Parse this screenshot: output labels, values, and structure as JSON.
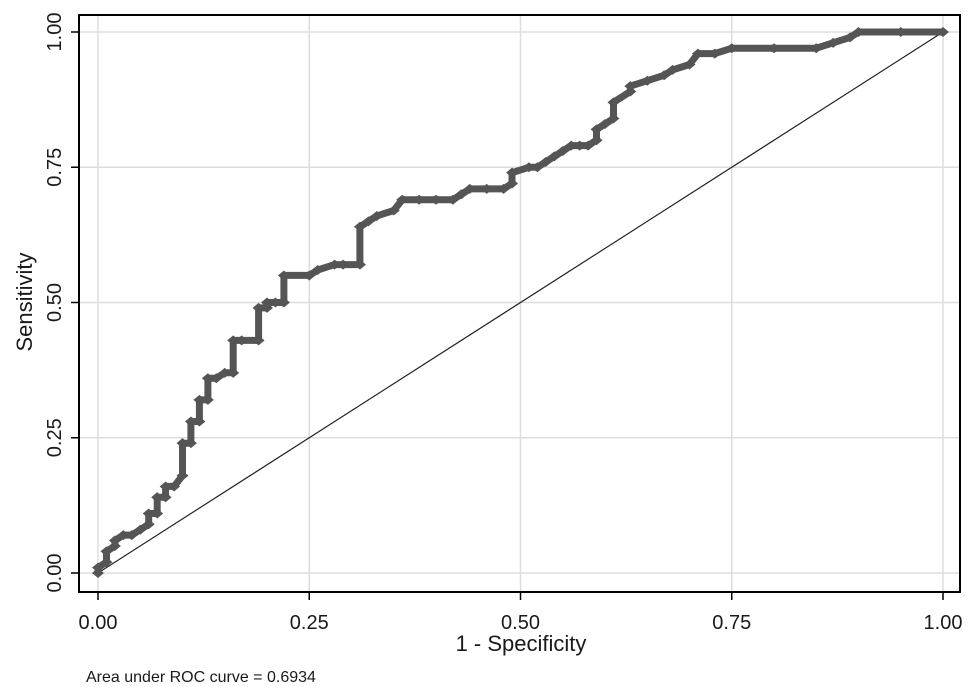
{
  "chart_data": {
    "type": "line",
    "xlabel": "1 - Specificity",
    "ylabel": "Sensitivity",
    "xlim": [
      0,
      1
    ],
    "ylim": [
      0,
      1
    ],
    "x_ticks": [
      "0.00",
      "0.25",
      "0.50",
      "0.75",
      "1.00"
    ],
    "y_ticks": [
      "0.00",
      "0.25",
      "0.50",
      "0.75",
      "1.00"
    ],
    "grid": true,
    "legend": "none",
    "note": "Area under ROC curve = 0.6934",
    "colors": {
      "curve": "#555555",
      "reference": "#222222",
      "grid": "#dddddd"
    },
    "series": [
      {
        "values": [
          [
            0.0,
            0.0
          ],
          [
            0.0,
            0.01
          ],
          [
            0.01,
            0.02
          ],
          [
            0.01,
            0.04
          ],
          [
            0.02,
            0.05
          ],
          [
            0.02,
            0.06
          ],
          [
            0.03,
            0.07
          ],
          [
            0.04,
            0.07
          ],
          [
            0.05,
            0.08
          ],
          [
            0.06,
            0.09
          ],
          [
            0.06,
            0.11
          ],
          [
            0.07,
            0.11
          ],
          [
            0.07,
            0.14
          ],
          [
            0.08,
            0.14
          ],
          [
            0.08,
            0.16
          ],
          [
            0.09,
            0.16
          ],
          [
            0.1,
            0.18
          ],
          [
            0.1,
            0.24
          ],
          [
            0.11,
            0.24
          ],
          [
            0.11,
            0.28
          ],
          [
            0.12,
            0.28
          ],
          [
            0.12,
            0.32
          ],
          [
            0.13,
            0.32
          ],
          [
            0.13,
            0.36
          ],
          [
            0.14,
            0.36
          ],
          [
            0.15,
            0.37
          ],
          [
            0.16,
            0.37
          ],
          [
            0.16,
            0.43
          ],
          [
            0.17,
            0.43
          ],
          [
            0.19,
            0.43
          ],
          [
            0.19,
            0.49
          ],
          [
            0.2,
            0.49
          ],
          [
            0.2,
            0.5
          ],
          [
            0.21,
            0.5
          ],
          [
            0.22,
            0.5
          ],
          [
            0.22,
            0.55
          ],
          [
            0.25,
            0.55
          ],
          [
            0.26,
            0.56
          ],
          [
            0.28,
            0.57
          ],
          [
            0.29,
            0.57
          ],
          [
            0.31,
            0.57
          ],
          [
            0.31,
            0.64
          ],
          [
            0.32,
            0.65
          ],
          [
            0.33,
            0.66
          ],
          [
            0.35,
            0.67
          ],
          [
            0.36,
            0.69
          ],
          [
            0.38,
            0.69
          ],
          [
            0.4,
            0.69
          ],
          [
            0.42,
            0.69
          ],
          [
            0.43,
            0.7
          ],
          [
            0.44,
            0.71
          ],
          [
            0.46,
            0.71
          ],
          [
            0.48,
            0.71
          ],
          [
            0.49,
            0.72
          ],
          [
            0.49,
            0.74
          ],
          [
            0.51,
            0.75
          ],
          [
            0.52,
            0.75
          ],
          [
            0.53,
            0.76
          ],
          [
            0.54,
            0.77
          ],
          [
            0.55,
            0.78
          ],
          [
            0.56,
            0.79
          ],
          [
            0.57,
            0.79
          ],
          [
            0.58,
            0.79
          ],
          [
            0.59,
            0.8
          ],
          [
            0.59,
            0.82
          ],
          [
            0.6,
            0.83
          ],
          [
            0.61,
            0.84
          ],
          [
            0.61,
            0.87
          ],
          [
            0.63,
            0.89
          ],
          [
            0.63,
            0.9
          ],
          [
            0.65,
            0.91
          ],
          [
            0.67,
            0.92
          ],
          [
            0.68,
            0.93
          ],
          [
            0.7,
            0.94
          ],
          [
            0.71,
            0.96
          ],
          [
            0.73,
            0.96
          ],
          [
            0.75,
            0.97
          ],
          [
            0.8,
            0.97
          ],
          [
            0.85,
            0.97
          ],
          [
            0.87,
            0.98
          ],
          [
            0.89,
            0.99
          ],
          [
            0.9,
            1.0
          ],
          [
            0.95,
            1.0
          ],
          [
            1.0,
            1.0
          ]
        ]
      }
    ]
  }
}
